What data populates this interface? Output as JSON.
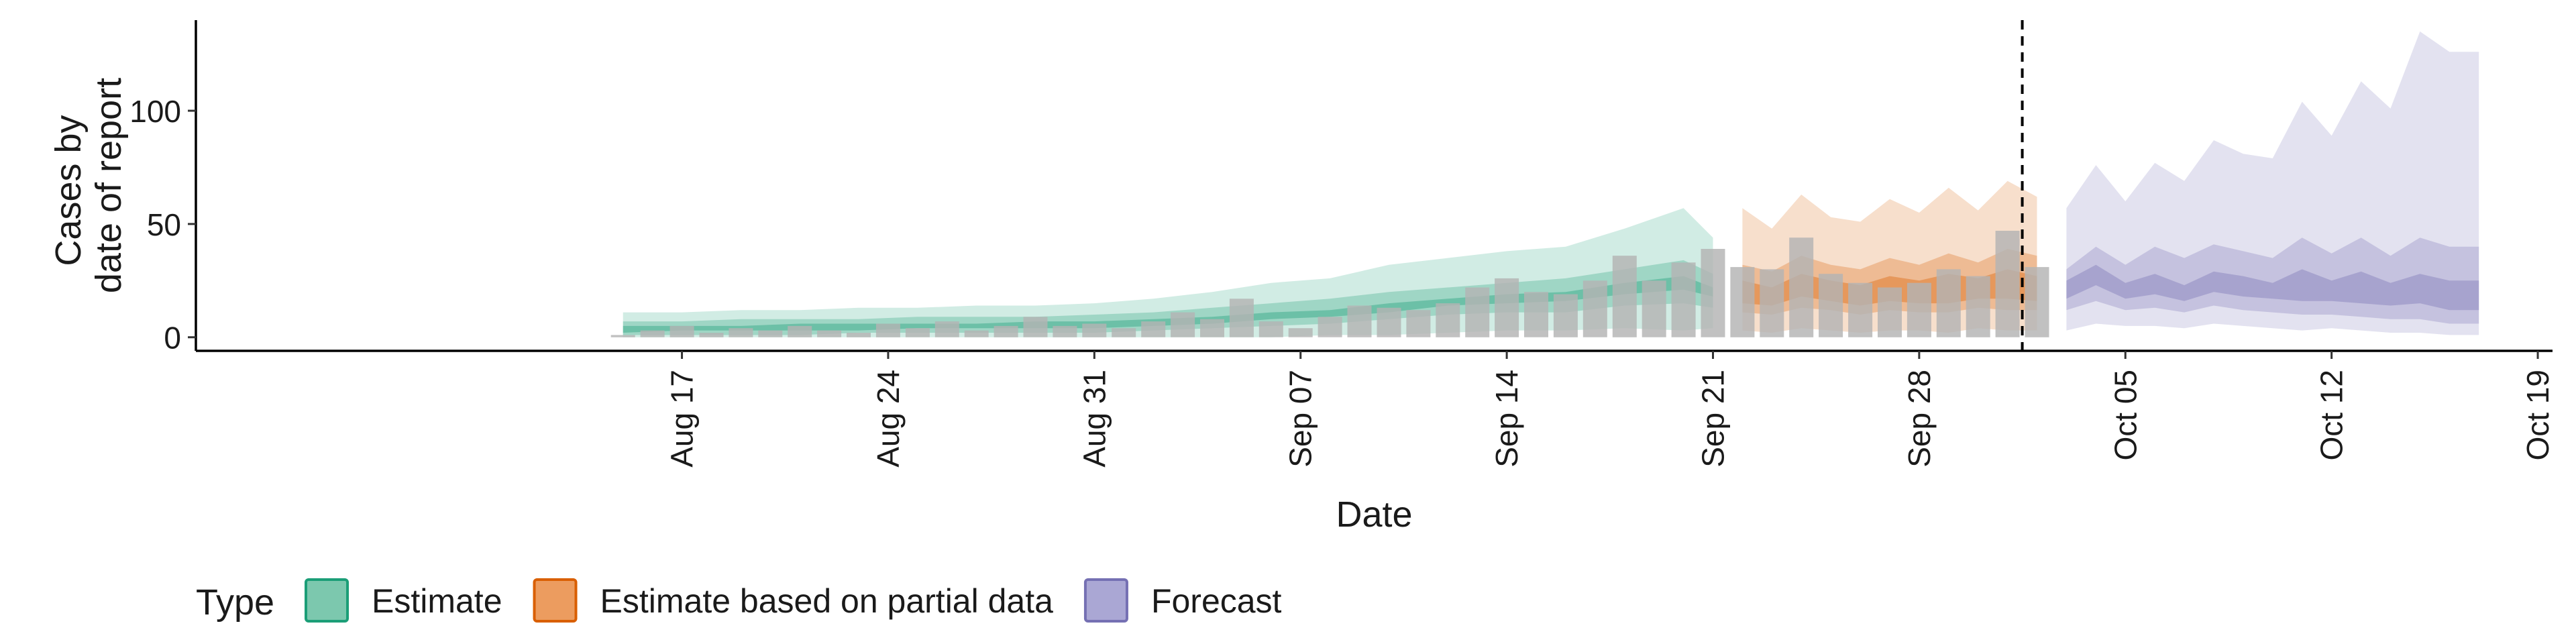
{
  "chart_data": {
    "type": "area",
    "xlabel": "Date",
    "ylabel_lines": [
      "Cases by",
      "date of report"
    ],
    "y_ticks": [
      0,
      50,
      100
    ],
    "ylim": [
      -6,
      140
    ],
    "x_ticks": [
      {
        "label": "Aug 17",
        "day": 16
      },
      {
        "label": "Aug 24",
        "day": 23
      },
      {
        "label": "Aug 31",
        "day": 30
      },
      {
        "label": "Sep 07",
        "day": 37
      },
      {
        "label": "Sep 14",
        "day": 44
      },
      {
        "label": "Sep 21",
        "day": 51
      },
      {
        "label": "Sep 28",
        "day": 58
      },
      {
        "label": "Oct 05",
        "day": 65
      },
      {
        "label": "Oct 12",
        "day": 72
      },
      {
        "label": "Oct 19",
        "day": 79
      }
    ],
    "x_range_days": [
      -0.5,
      79.5
    ],
    "forecast_start_day": 62,
    "reported_cases": [
      {
        "date": "Aug 15",
        "value": 1
      },
      {
        "date": "Aug 16",
        "value": 3
      },
      {
        "date": "Aug 17",
        "value": 5
      },
      {
        "date": "Aug 18",
        "value": 2
      },
      {
        "date": "Aug 19",
        "value": 4
      },
      {
        "date": "Aug 20",
        "value": 3
      },
      {
        "date": "Aug 21",
        "value": 5
      },
      {
        "date": "Aug 22",
        "value": 3
      },
      {
        "date": "Aug 23",
        "value": 2
      },
      {
        "date": "Aug 24",
        "value": 6
      },
      {
        "date": "Aug 25",
        "value": 4
      },
      {
        "date": "Aug 26",
        "value": 7
      },
      {
        "date": "Aug 27",
        "value": 3
      },
      {
        "date": "Aug 28",
        "value": 5
      },
      {
        "date": "Aug 29",
        "value": 9
      },
      {
        "date": "Aug 30",
        "value": 5
      },
      {
        "date": "Aug 31",
        "value": 6
      },
      {
        "date": "Sep 01",
        "value": 4
      },
      {
        "date": "Sep 02",
        "value": 7
      },
      {
        "date": "Sep 03",
        "value": 11
      },
      {
        "date": "Sep 04",
        "value": 8
      },
      {
        "date": "Sep 05",
        "value": 17
      },
      {
        "date": "Sep 06",
        "value": 7
      },
      {
        "date": "Sep 07",
        "value": 4
      },
      {
        "date": "Sep 08",
        "value": 9
      },
      {
        "date": "Sep 09",
        "value": 14
      },
      {
        "date": "Sep 10",
        "value": 13
      },
      {
        "date": "Sep 11",
        "value": 12
      },
      {
        "date": "Sep 12",
        "value": 15
      },
      {
        "date": "Sep 13",
        "value": 22
      },
      {
        "date": "Sep 14",
        "value": 26
      },
      {
        "date": "Sep 15",
        "value": 20
      },
      {
        "date": "Sep 16",
        "value": 19
      },
      {
        "date": "Sep 17",
        "value": 25
      },
      {
        "date": "Sep 18",
        "value": 36
      },
      {
        "date": "Sep 19",
        "value": 25
      },
      {
        "date": "Sep 20",
        "value": 33
      },
      {
        "date": "Sep 21",
        "value": 39
      },
      {
        "date": "Sep 22",
        "value": 31
      },
      {
        "date": "Sep 23",
        "value": 30
      },
      {
        "date": "Sep 24",
        "value": 44
      },
      {
        "date": "Sep 25",
        "value": 28
      },
      {
        "date": "Sep 26",
        "value": 24
      },
      {
        "date": "Sep 27",
        "value": 22
      },
      {
        "date": "Sep 28",
        "value": 24
      },
      {
        "date": "Sep 29",
        "value": 30
      },
      {
        "date": "Sep 30",
        "value": 27
      },
      {
        "date": "Oct 01",
        "value": 47
      },
      {
        "date": "Oct 02",
        "value": 31
      }
    ],
    "series": [
      {
        "name": "Estimate",
        "color": "#1b9e77",
        "dates": [
          "Aug 15",
          "Aug 17",
          "Aug 19",
          "Aug 21",
          "Aug 23",
          "Aug 25",
          "Aug 27",
          "Aug 29",
          "Aug 31",
          "Sep 02",
          "Sep 04",
          "Sep 06",
          "Sep 08",
          "Sep 10",
          "Sep 12",
          "Sep 14",
          "Sep 16",
          "Sep 18",
          "Sep 20",
          "Sep 21"
        ],
        "lower90": [
          0,
          0,
          0,
          0,
          0,
          0,
          0,
          0,
          0,
          0,
          0,
          0,
          1,
          1,
          2,
          3,
          3,
          4,
          3,
          4
        ],
        "upper90": [
          11,
          11,
          12,
          12,
          13,
          13,
          14,
          14,
          15,
          17,
          20,
          24,
          26,
          32,
          35,
          38,
          40,
          48,
          57,
          44
        ],
        "lower50": [
          1,
          1,
          1,
          1,
          2,
          2,
          2,
          2,
          2,
          3,
          4,
          5,
          6,
          8,
          10,
          11,
          11,
          14,
          15,
          13
        ],
        "upper50": [
          7,
          7,
          8,
          8,
          8,
          9,
          9,
          9,
          10,
          11,
          13,
          15,
          17,
          20,
          22,
          24,
          26,
          30,
          34,
          28
        ],
        "lower20": [
          2,
          3,
          3,
          3,
          3,
          4,
          4,
          4,
          4,
          5,
          6,
          8,
          9,
          11,
          14,
          15,
          16,
          19,
          21,
          18
        ],
        "upper20": [
          5,
          5,
          5,
          6,
          6,
          6,
          6,
          7,
          7,
          8,
          9,
          11,
          12,
          15,
          17,
          19,
          20,
          24,
          27,
          22
        ]
      },
      {
        "name": "Estimate based on partial data",
        "color": "#d95f02",
        "dates": [
          "Sep 22",
          "Sep 23",
          "Sep 24",
          "Sep 25",
          "Sep 26",
          "Sep 27",
          "Sep 28",
          "Sep 29",
          "Sep 30",
          "Oct 01",
          "Oct 02"
        ],
        "lower90": [
          3,
          2,
          4,
          3,
          2,
          3,
          3,
          2,
          4,
          3,
          3
        ],
        "upper90": [
          57,
          48,
          63,
          53,
          51,
          61,
          55,
          66,
          56,
          69,
          62
        ],
        "lower50": [
          11,
          10,
          13,
          12,
          10,
          12,
          11,
          11,
          13,
          12,
          12
        ],
        "upper50": [
          32,
          29,
          36,
          32,
          30,
          35,
          32,
          37,
          33,
          39,
          36
        ],
        "lower20": [
          15,
          14,
          18,
          16,
          14,
          16,
          15,
          15,
          17,
          17,
          16
        ],
        "upper20": [
          25,
          22,
          28,
          25,
          23,
          27,
          25,
          28,
          26,
          30,
          27
        ]
      },
      {
        "name": "Forecast",
        "color": "#7570b3",
        "dates": [
          "Oct 03",
          "Oct 04",
          "Oct 05",
          "Oct 06",
          "Oct 07",
          "Oct 08",
          "Oct 09",
          "Oct 10",
          "Oct 11",
          "Oct 12",
          "Oct 13",
          "Oct 14",
          "Oct 15",
          "Oct 16",
          "Oct 17"
        ],
        "lower90": [
          3,
          6,
          5,
          5,
          4,
          6,
          5,
          4,
          3,
          4,
          3,
          2,
          2,
          1,
          1
        ],
        "upper90": [
          57,
          76,
          60,
          77,
          69,
          87,
          81,
          79,
          104,
          89,
          113,
          101,
          135,
          126,
          126
        ],
        "lower50": [
          12,
          16,
          12,
          13,
          11,
          14,
          12,
          11,
          10,
          10,
          9,
          8,
          8,
          6,
          6
        ],
        "upper50": [
          30,
          40,
          32,
          40,
          35,
          41,
          38,
          35,
          44,
          37,
          44,
          36,
          44,
          40,
          40
        ],
        "lower20": [
          17,
          23,
          17,
          19,
          16,
          20,
          18,
          17,
          16,
          16,
          15,
          14,
          15,
          12,
          12
        ],
        "upper20": [
          25,
          32,
          24,
          28,
          23,
          29,
          27,
          24,
          30,
          25,
          29,
          24,
          28,
          25,
          25
        ]
      }
    ],
    "legend": {
      "title": "Type",
      "position": "bottom",
      "items": [
        {
          "label": "Estimate",
          "fill": "#7cc8ae",
          "stroke": "#1b9e77"
        },
        {
          "label": "Estimate based on partial data",
          "fill": "#ec9c5f",
          "stroke": "#d95f02"
        },
        {
          "label": "Forecast",
          "fill": "#aaa7d4",
          "stroke": "#7570b3"
        }
      ]
    },
    "bar_color": "#b3b3b3",
    "grid": false
  }
}
